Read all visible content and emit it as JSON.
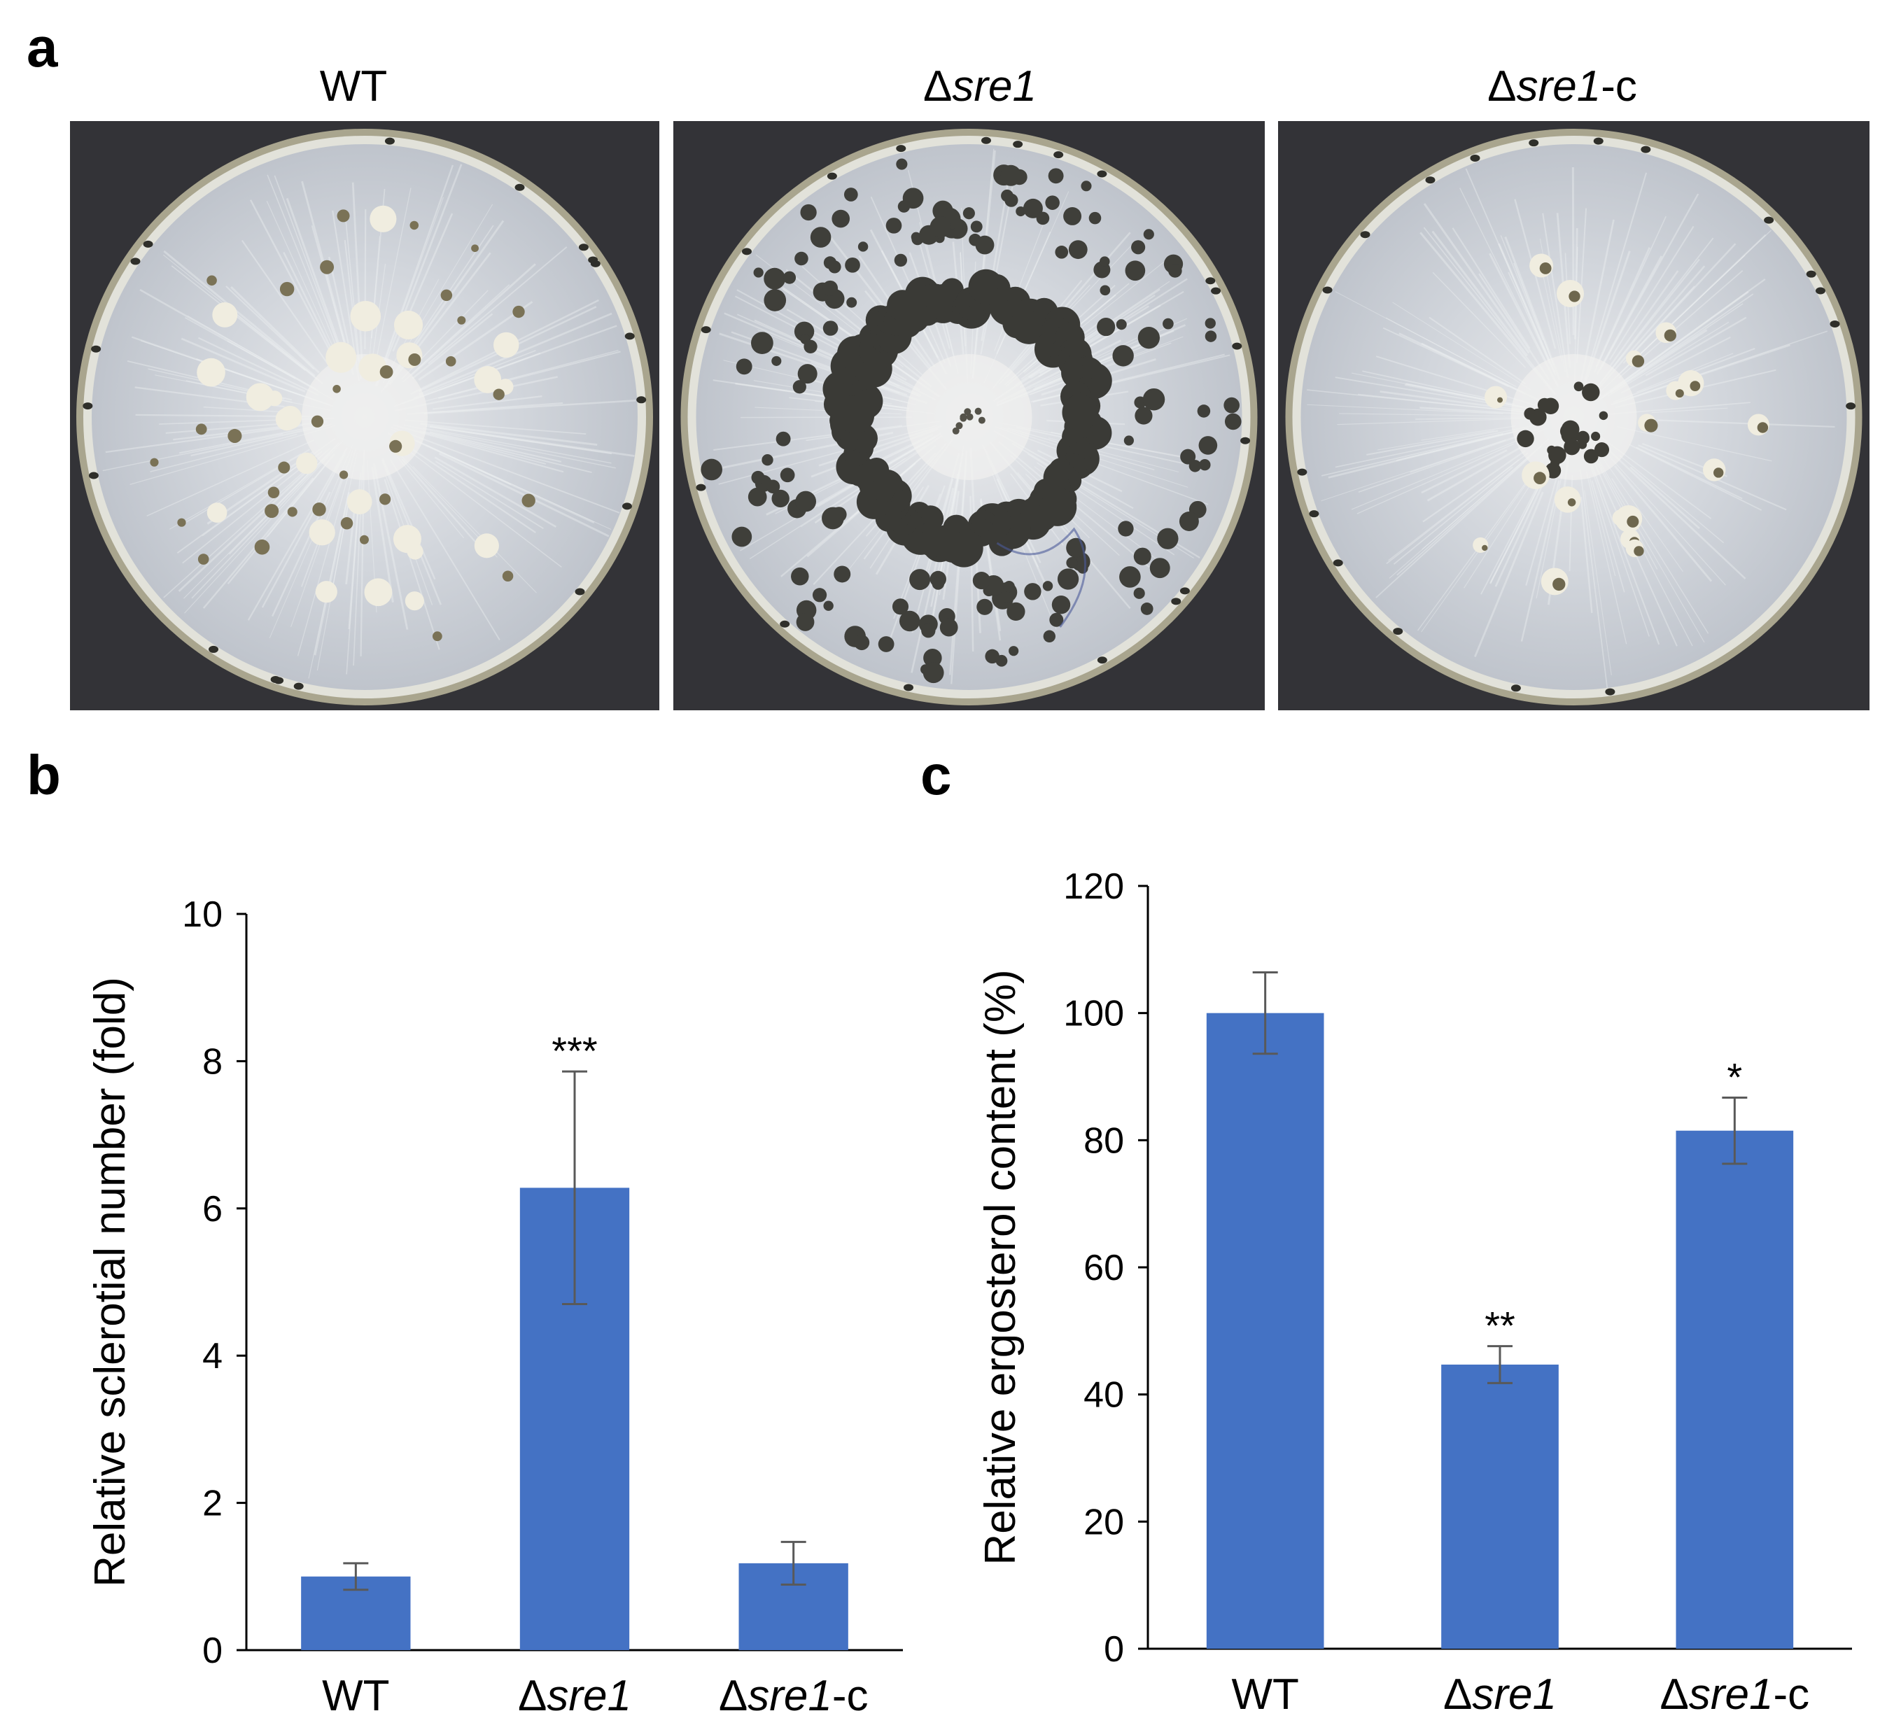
{
  "panels": {
    "a": "a",
    "b": "b",
    "c": "c"
  },
  "plates": [
    {
      "prefix": "",
      "italic": "WT",
      "suffix": "",
      "plain": true,
      "pattern": "wt"
    },
    {
      "prefix": "Δ",
      "italic": "sre1",
      "suffix": "",
      "plain": false,
      "pattern": "mutant"
    },
    {
      "prefix": "Δ",
      "italic": "sre1",
      "suffix": "-c",
      "plain": false,
      "pattern": "complement"
    }
  ],
  "colors": {
    "bar": "#4472C4",
    "error_bar": "#595959",
    "plate_background": "#333337",
    "agar": "#D2D6DC",
    "sclerotia_dark": "#3A3A36"
  },
  "chart_data": [
    {
      "type": "bar",
      "panel": "b",
      "categories": [
        {
          "prefix": "",
          "italic": "",
          "plain": "WT",
          "suffix": ""
        },
        {
          "prefix": "Δ",
          "italic": "sre1",
          "plain": "",
          "suffix": ""
        },
        {
          "prefix": "Δ",
          "italic": "sre1",
          "plain": "",
          "suffix": "-c"
        }
      ],
      "values": [
        1.0,
        6.28,
        1.18
      ],
      "errors": [
        0.18,
        1.58,
        0.29
      ],
      "significance": [
        "",
        "***",
        ""
      ],
      "ylabel": "Relative sclerotial number (fold)",
      "ylim": [
        0,
        10
      ],
      "yticks": [
        0,
        2,
        4,
        6,
        8,
        10
      ],
      "grid": false
    },
    {
      "type": "bar",
      "panel": "c",
      "categories": [
        {
          "prefix": "",
          "italic": "",
          "plain": "WT",
          "suffix": ""
        },
        {
          "prefix": "Δ",
          "italic": "sre1",
          "plain": "",
          "suffix": ""
        },
        {
          "prefix": "Δ",
          "italic": "sre1",
          "plain": "",
          "suffix": "-c"
        }
      ],
      "values": [
        100,
        44.7,
        81.5
      ],
      "errors": [
        6.4,
        2.9,
        5.2
      ],
      "significance": [
        "",
        "**",
        "*"
      ],
      "ylabel": "Relative ergosterol content  (%)",
      "ylim": [
        0,
        120
      ],
      "yticks": [
        0,
        20,
        40,
        60,
        80,
        100,
        120
      ],
      "grid": false
    }
  ]
}
